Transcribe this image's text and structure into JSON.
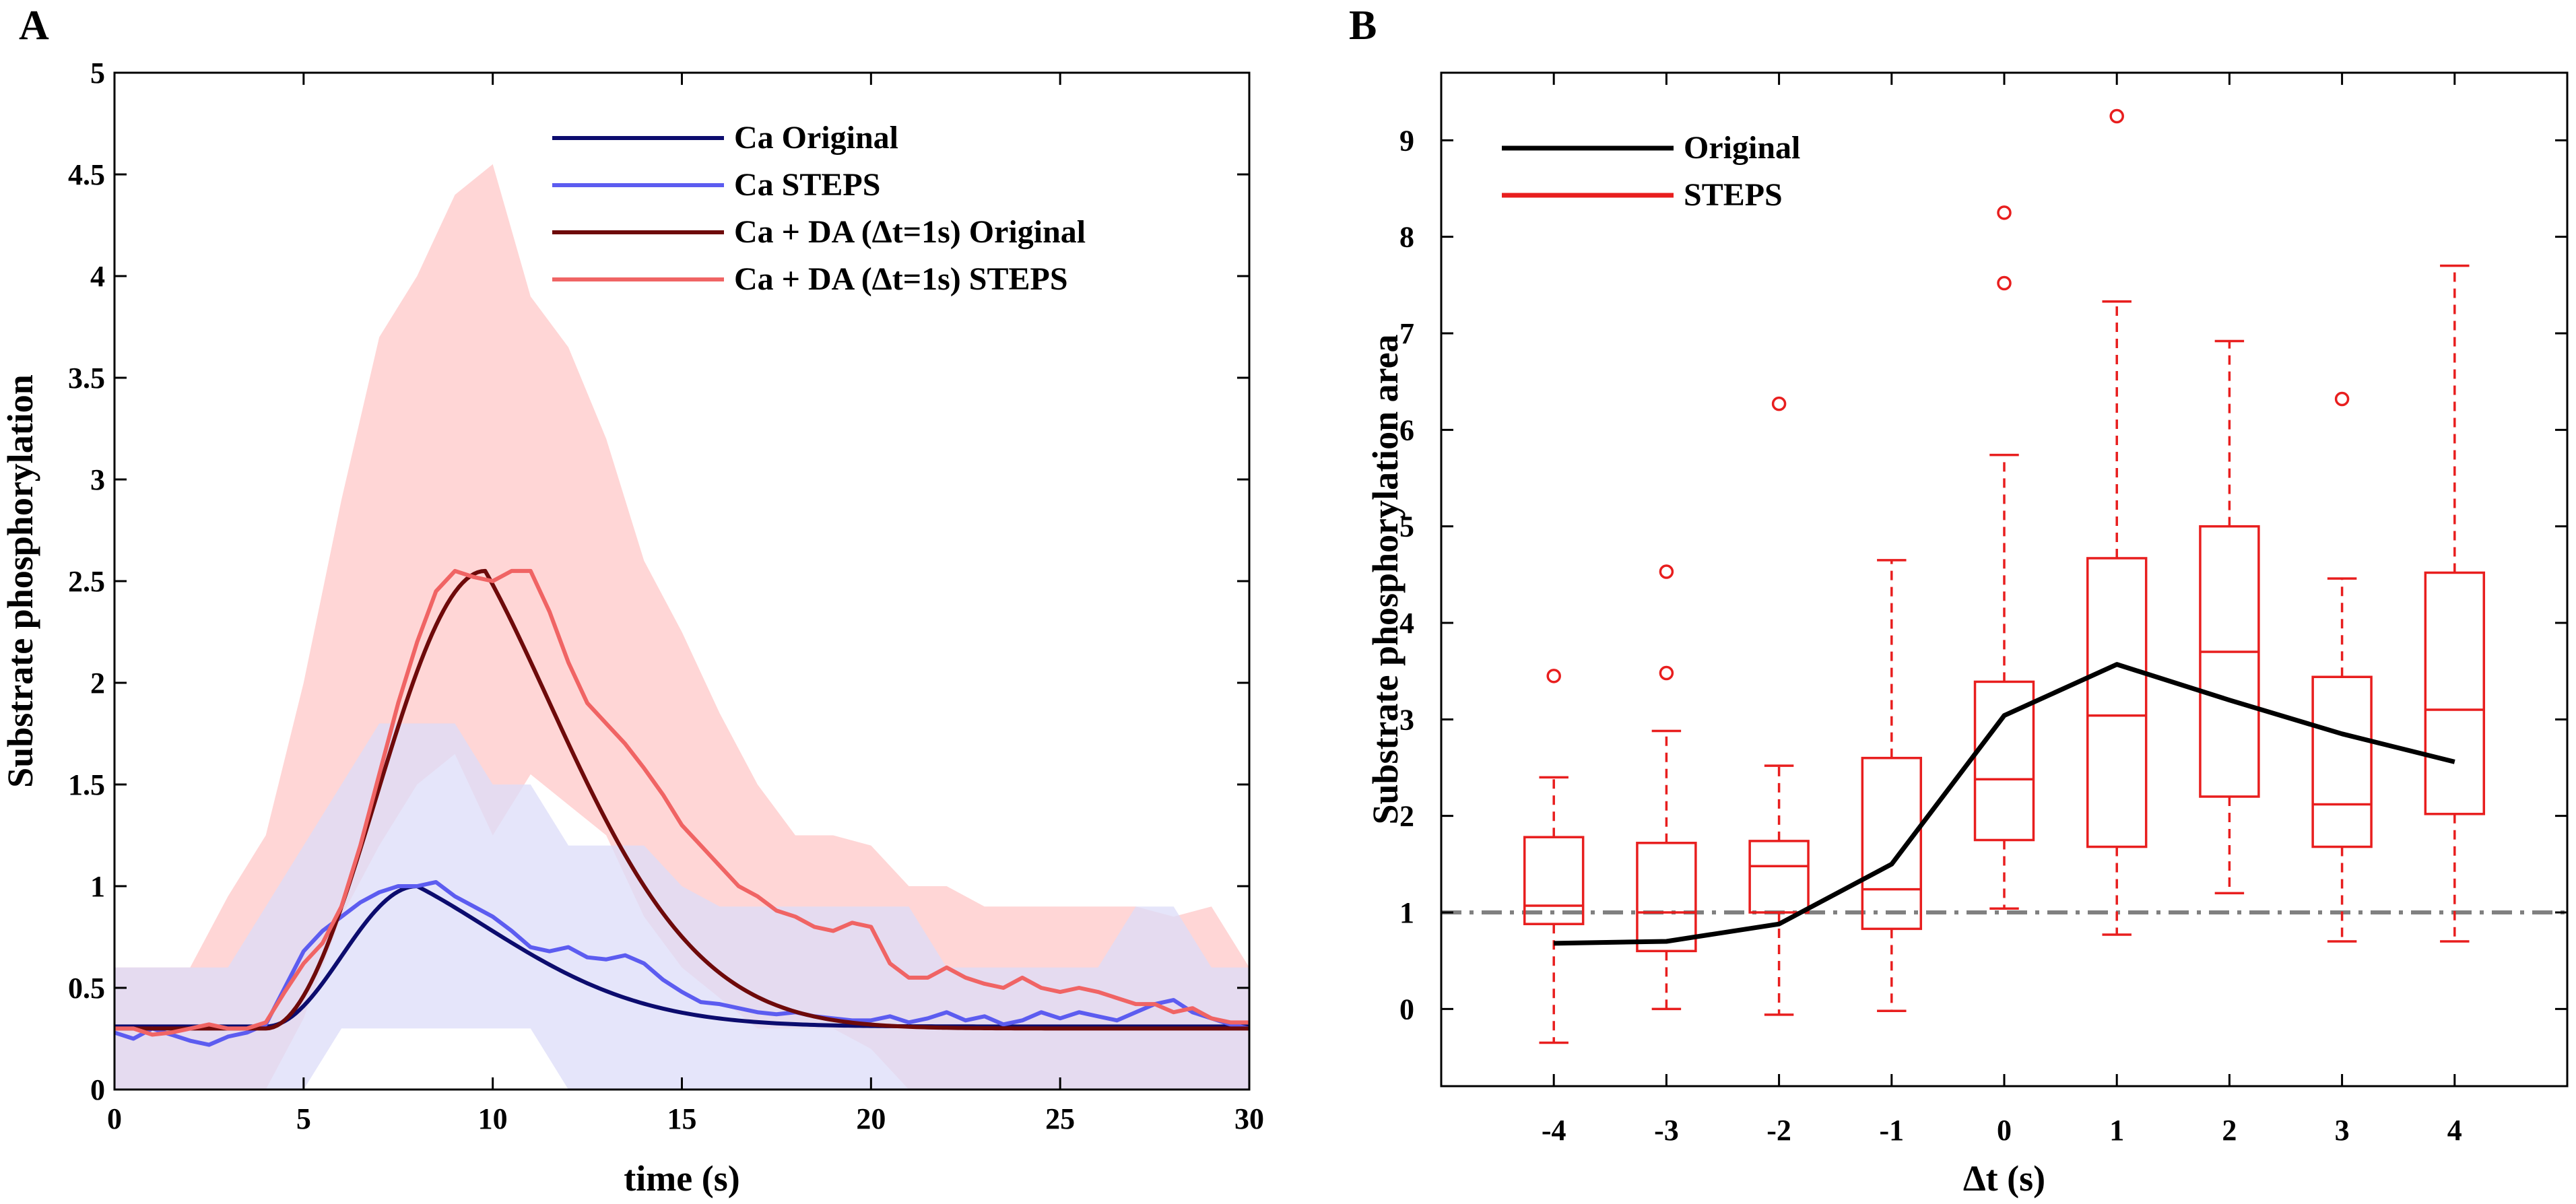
{
  "panels": [
    {
      "letter": "A",
      "chart_data": {
        "type": "line",
        "xlabel": "time (s)",
        "ylabel": "Substrate phosphorylation",
        "xlim": [
          0,
          30
        ],
        "ylim": [
          0,
          5
        ],
        "xticks": [
          0,
          5,
          10,
          15,
          20,
          25,
          30
        ],
        "yticks": [
          0,
          0.5,
          1,
          1.5,
          2,
          2.5,
          3,
          3.5,
          4,
          4.5,
          5
        ],
        "legend_position": "top-right",
        "series": [
          {
            "name": "Ca Original",
            "color": "#0c0c6e",
            "kind": "smooth",
            "base": 0.31,
            "rise_start": 4.0,
            "peak_t": 8.0,
            "peak": 1.0,
            "decay_tau": 3.3
          },
          {
            "name": "Ca STEPS",
            "color": "#5c5cf0",
            "kind": "noisy",
            "x": [
              0,
              0.5,
              1,
              1.5,
              2,
              2.5,
              3,
              3.5,
              4,
              4.5,
              5,
              5.5,
              6,
              6.5,
              7,
              7.5,
              8,
              8.5,
              9,
              9.5,
              10,
              10.5,
              11,
              11.5,
              12,
              12.5,
              13,
              13.5,
              14,
              14.5,
              15,
              15.5,
              16,
              16.5,
              17,
              17.5,
              18,
              18.5,
              19,
              19.5,
              20,
              20.5,
              21,
              21.5,
              22,
              22.5,
              23,
              23.5,
              24,
              24.5,
              25,
              25.5,
              26,
              26.5,
              27,
              27.5,
              28,
              28.5,
              29,
              29.5,
              30
            ],
            "y": [
              0.28,
              0.25,
              0.3,
              0.27,
              0.24,
              0.22,
              0.26,
              0.28,
              0.32,
              0.5,
              0.68,
              0.78,
              0.85,
              0.92,
              0.97,
              1.0,
              1.0,
              1.02,
              0.95,
              0.9,
              0.85,
              0.78,
              0.7,
              0.68,
              0.7,
              0.65,
              0.64,
              0.66,
              0.62,
              0.54,
              0.48,
              0.43,
              0.42,
              0.4,
              0.38,
              0.37,
              0.38,
              0.36,
              0.35,
              0.34,
              0.34,
              0.36,
              0.33,
              0.35,
              0.38,
              0.34,
              0.36,
              0.32,
              0.34,
              0.38,
              0.35,
              0.38,
              0.36,
              0.34,
              0.38,
              0.42,
              0.44,
              0.38,
              0.35,
              0.32,
              0.3
            ]
          },
          {
            "name": "Ca + DA (Δt=1s) Original",
            "color": "#6e0a0a",
            "kind": "smooth",
            "base": 0.3,
            "rise_start": 4.0,
            "peak_t": 9.8,
            "peak": 2.55,
            "decay_tau": 3.1
          },
          {
            "name": "Ca + DA (Δt=1s) STEPS",
            "color": "#f06464",
            "kind": "noisy",
            "x": [
              0,
              0.5,
              1,
              1.5,
              2,
              2.5,
              3,
              3.5,
              4,
              4.5,
              5,
              5.5,
              6,
              6.5,
              7,
              7.5,
              8,
              8.5,
              9,
              9.5,
              10,
              10.5,
              11,
              11.5,
              12,
              12.5,
              13,
              13.5,
              14,
              14.5,
              15,
              15.5,
              16,
              16.5,
              17,
              17.5,
              18,
              18.5,
              19,
              19.5,
              20,
              20.5,
              21,
              21.5,
              22,
              22.5,
              23,
              23.5,
              24,
              24.5,
              25,
              25.5,
              26,
              26.5,
              27,
              27.5,
              28,
              28.5,
              29,
              29.5,
              30
            ],
            "y": [
              0.3,
              0.3,
              0.27,
              0.28,
              0.3,
              0.32,
              0.3,
              0.3,
              0.33,
              0.48,
              0.62,
              0.72,
              0.9,
              1.2,
              1.55,
              1.9,
              2.2,
              2.45,
              2.55,
              2.52,
              2.5,
              2.55,
              2.55,
              2.35,
              2.1,
              1.9,
              1.8,
              1.7,
              1.58,
              1.45,
              1.3,
              1.2,
              1.1,
              1.0,
              0.95,
              0.88,
              0.85,
              0.8,
              0.78,
              0.82,
              0.8,
              0.62,
              0.55,
              0.55,
              0.6,
              0.55,
              0.52,
              0.5,
              0.55,
              0.5,
              0.48,
              0.5,
              0.48,
              0.45,
              0.42,
              0.42,
              0.38,
              0.4,
              0.35,
              0.33,
              0.33
            ]
          }
        ],
        "bands": [
          {
            "label": "Ca + DA STEPS spread",
            "color": "#ffd6d6",
            "x": [
              0,
              2,
              3,
              4,
              5,
              6,
              7,
              8,
              9,
              10,
              11,
              12,
              13,
              14,
              15,
              16,
              17,
              18,
              19,
              20,
              21,
              22,
              23,
              24,
              25,
              26,
              27,
              28,
              29,
              30
            ],
            "upper": [
              0.6,
              0.6,
              0.95,
              1.25,
              2.0,
              2.9,
              3.7,
              4.0,
              4.4,
              4.55,
              3.9,
              3.65,
              3.2,
              2.6,
              2.25,
              1.85,
              1.5,
              1.25,
              1.25,
              1.2,
              1.0,
              1.0,
              0.9,
              0.9,
              0.9,
              0.9,
              0.9,
              0.85,
              0.9,
              0.6
            ],
            "lower": [
              0.0,
              0.0,
              0.0,
              0.0,
              0.35,
              0.85,
              1.2,
              1.5,
              1.65,
              1.25,
              1.55,
              1.4,
              1.25,
              0.85,
              0.6,
              0.45,
              0.3,
              0.3,
              0.3,
              0.2,
              0.0,
              0.0,
              0.0,
              0.0,
              0.0,
              0.0,
              0.0,
              0.0,
              0.0,
              0.0
            ]
          },
          {
            "label": "Ca STEPS spread",
            "color": "#dcdcf8",
            "x": [
              0,
              2,
              3,
              4,
              5,
              6,
              7,
              8,
              9,
              10,
              11,
              12,
              13,
              14,
              15,
              16,
              17,
              18,
              19,
              20,
              21,
              22,
              23,
              24,
              25,
              26,
              27,
              28,
              29,
              30
            ],
            "upper": [
              0.6,
              0.6,
              0.6,
              0.9,
              1.2,
              1.5,
              1.8,
              1.8,
              1.8,
              1.5,
              1.5,
              1.2,
              1.2,
              1.2,
              1.0,
              0.9,
              0.9,
              0.9,
              0.9,
              0.9,
              0.9,
              0.6,
              0.6,
              0.6,
              0.6,
              0.6,
              0.9,
              0.9,
              0.6,
              0.6
            ],
            "lower": [
              0.0,
              0.0,
              0.0,
              0.0,
              0.0,
              0.3,
              0.3,
              0.3,
              0.3,
              0.3,
              0.3,
              0.0,
              0.0,
              0.0,
              0.0,
              0.0,
              0.0,
              0.0,
              0.0,
              0.0,
              0.0,
              0.0,
              0.0,
              0.0,
              0.0,
              0.0,
              0.0,
              0.0,
              0.0,
              0.0
            ]
          }
        ]
      }
    },
    {
      "letter": "B",
      "chart_data": {
        "type": "box",
        "xlabel": "Δt (s)",
        "ylabel": "Substrate phosphorylation area",
        "xlim": [
          -5,
          5
        ],
        "ylim": [
          -0.8,
          9.7
        ],
        "categories": [
          "-4",
          "-3",
          "-2",
          "-1",
          "0",
          "1",
          "2",
          "3",
          "4"
        ],
        "yticks": [
          0,
          1,
          2,
          3,
          4,
          5,
          6,
          7,
          8,
          9
        ],
        "legend_position": "top-left",
        "reference_line": {
          "y": 1.0,
          "color": "#808080",
          "style": "dash-dot"
        },
        "series": [
          {
            "name": "Original",
            "color": "#000000",
            "kind": "line",
            "x": [
              -4,
              -3,
              -2,
              -1,
              0,
              1,
              2,
              3,
              4
            ],
            "y": [
              0.68,
              0.7,
              0.88,
              1.5,
              3.04,
              3.57,
              3.2,
              2.85,
              2.56
            ]
          },
          {
            "name": "STEPS",
            "color": "#e81e1e",
            "kind": "box",
            "boxes": [
              {
                "x": -4,
                "whisker_low": -0.35,
                "q1": 0.88,
                "median": 1.07,
                "q3": 1.78,
                "whisker_high": 2.4,
                "outliers": [
                  3.45
                ]
              },
              {
                "x": -3,
                "whisker_low": 0.0,
                "q1": 0.6,
                "median": 1.0,
                "q3": 1.72,
                "whisker_high": 2.88,
                "outliers": [
                  3.48,
                  4.53
                ]
              },
              {
                "x": -2,
                "whisker_low": -0.06,
                "q1": 1.0,
                "median": 1.48,
                "q3": 1.74,
                "whisker_high": 2.52,
                "outliers": [
                  6.27
                ]
              },
              {
                "x": -1,
                "whisker_low": -0.02,
                "q1": 0.83,
                "median": 1.24,
                "q3": 2.6,
                "whisker_high": 4.65,
                "outliers": []
              },
              {
                "x": 0,
                "whisker_low": 1.04,
                "q1": 1.75,
                "median": 2.38,
                "q3": 3.39,
                "whisker_high": 5.74,
                "outliers": [
                  7.52,
                  8.25
                ]
              },
              {
                "x": 1,
                "whisker_low": 0.77,
                "q1": 1.68,
                "median": 3.04,
                "q3": 4.67,
                "whisker_high": 7.33,
                "outliers": [
                  9.25
                ]
              },
              {
                "x": 2,
                "whisker_low": 1.2,
                "q1": 2.2,
                "median": 3.7,
                "q3": 5.0,
                "whisker_high": 6.92,
                "outliers": []
              },
              {
                "x": 3,
                "whisker_low": 0.7,
                "q1": 1.68,
                "median": 2.12,
                "q3": 3.44,
                "whisker_high": 4.46,
                "outliers": [
                  6.32
                ]
              },
              {
                "x": 4,
                "whisker_low": 0.7,
                "q1": 2.02,
                "median": 3.1,
                "q3": 4.52,
                "whisker_high": 7.7,
                "outliers": []
              }
            ]
          }
        ]
      }
    }
  ]
}
